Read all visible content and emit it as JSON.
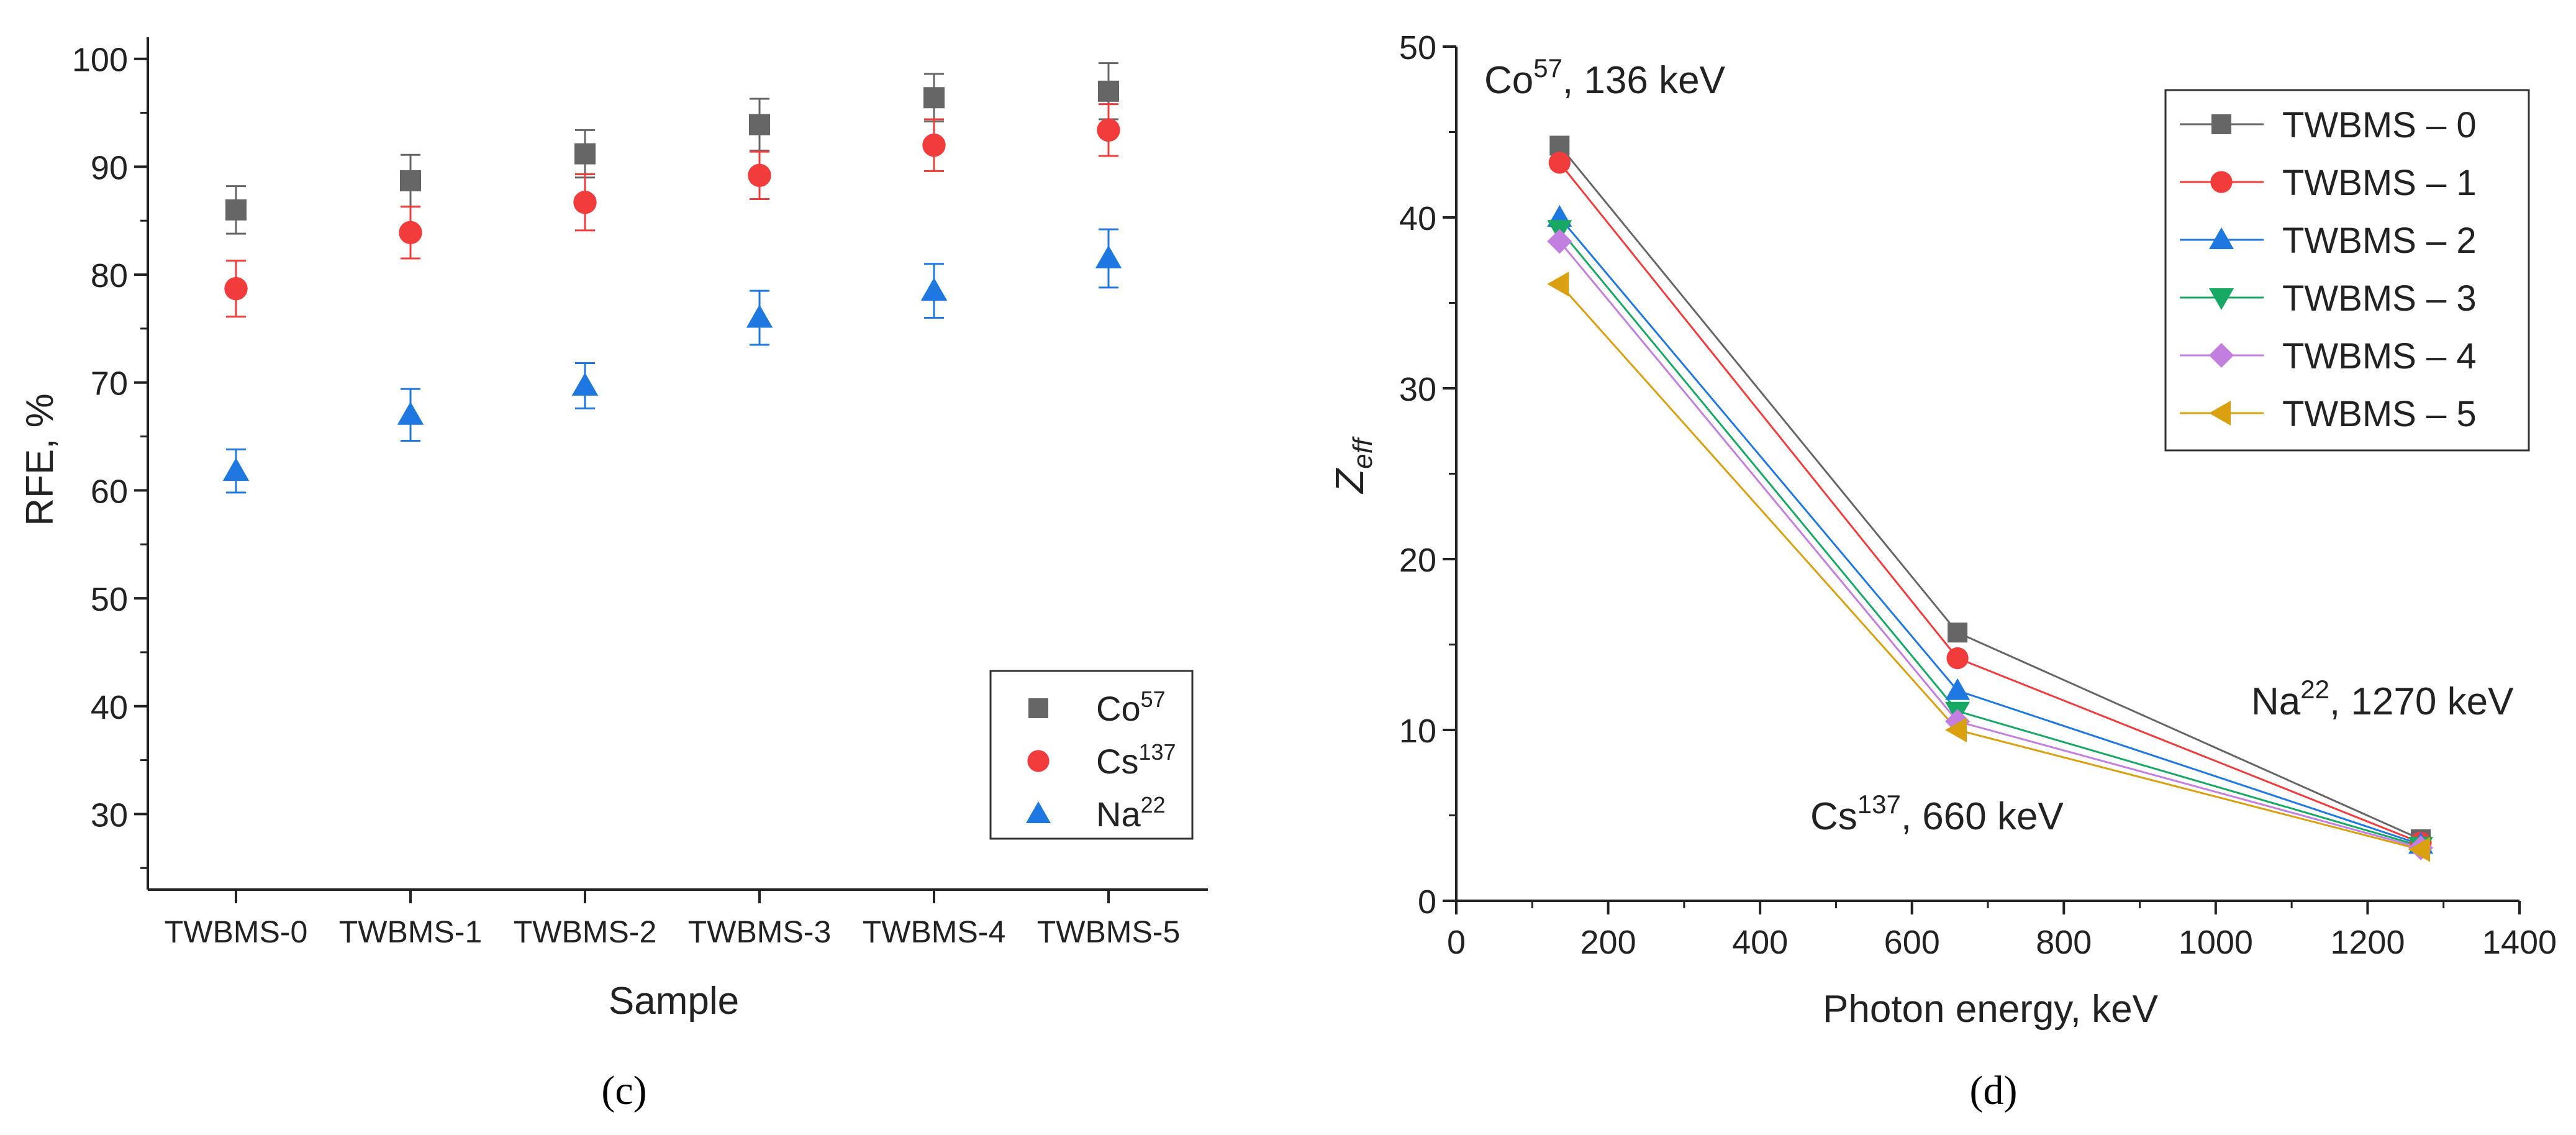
{
  "chart_data": [
    {
      "type": "scatter",
      "panel_label": "(c)",
      "xlabel": "Sample",
      "ylabel": "RFE, %",
      "categories": [
        "TWBMS-0",
        "TWBMS-1",
        "TWBMS-2",
        "TWBMS-3",
        "TWBMS-4",
        "TWBMS-5"
      ],
      "ylim": [
        23,
        102
      ],
      "yticks": [
        30,
        40,
        50,
        60,
        70,
        80,
        90,
        100
      ],
      "legend_position": "bottom-right",
      "series": [
        {
          "name": "Co",
          "sup": "57",
          "marker": "square",
          "color": "#666666",
          "values": [
            86.0,
            88.7,
            91.2,
            93.9,
            96.4,
            97.0
          ],
          "errors": [
            2.2,
            2.4,
            2.2,
            2.4,
            2.2,
            2.6
          ]
        },
        {
          "name": "Cs",
          "sup": "137",
          "marker": "circle",
          "color": "#f23c3c",
          "values": [
            78.7,
            83.9,
            86.7,
            89.2,
            92.0,
            93.4
          ],
          "errors": [
            2.6,
            2.4,
            2.6,
            2.2,
            2.4,
            2.4
          ]
        },
        {
          "name": "Na",
          "sup": "22",
          "marker": "triangle",
          "color": "#1e78e0",
          "values": [
            61.8,
            67.0,
            69.7,
            76.0,
            78.5,
            81.5
          ],
          "errors": [
            2.0,
            2.4,
            2.1,
            2.5,
            2.5,
            2.7
          ]
        }
      ]
    },
    {
      "type": "line",
      "panel_label": "(d)",
      "xlabel": "Photon energy, keV",
      "ylabel_main": "Z",
      "ylabel_sub": "eff",
      "x": [
        136,
        660,
        1270
      ],
      "xlim": [
        0,
        1400
      ],
      "ylim": [
        0,
        50
      ],
      "xticks": [
        0,
        200,
        400,
        600,
        800,
        1000,
        1200,
        1400
      ],
      "yticks": [
        0,
        10,
        20,
        30,
        40,
        50
      ],
      "legend_position": "top-right",
      "annotations": [
        {
          "base": "Co",
          "sup": "57",
          "rest": ", 136 keV"
        },
        {
          "base": "Cs",
          "sup": "137",
          "rest": ", 660 keV"
        },
        {
          "base": "Na",
          "sup": "22",
          "rest": ", 1270 keV"
        }
      ],
      "series": [
        {
          "name": "TWBMS – 0",
          "marker": "square",
          "color": "#666666",
          "values": [
            44.2,
            15.7,
            3.6
          ]
        },
        {
          "name": "TWBMS – 1",
          "marker": "circle",
          "color": "#f23c3c",
          "values": [
            43.2,
            14.2,
            3.4
          ]
        },
        {
          "name": "TWBMS – 2",
          "marker": "triangle-up",
          "color": "#1e78e0",
          "values": [
            40.0,
            12.3,
            3.3
          ]
        },
        {
          "name": "TWBMS – 3",
          "marker": "triangle-down",
          "color": "#17a863",
          "values": [
            39.3,
            11.1,
            3.2
          ]
        },
        {
          "name": "TWBMS – 4",
          "marker": "diamond",
          "color": "#c27fe0",
          "values": [
            38.6,
            10.5,
            3.1
          ]
        },
        {
          "name": "TWBMS – 5",
          "marker": "triangle-left",
          "color": "#d9a010",
          "values": [
            36.1,
            10.0,
            3.0
          ]
        }
      ]
    }
  ]
}
